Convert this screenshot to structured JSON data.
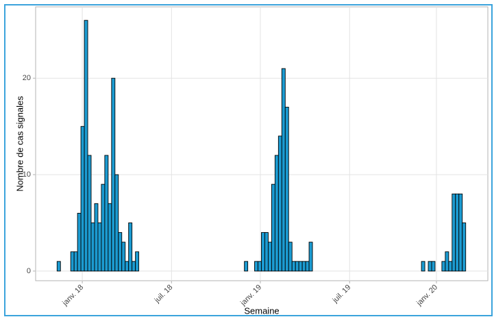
{
  "chart_data": {
    "type": "histogram",
    "y_label": "Nombre de cas signales",
    "x_label": "Semaine",
    "color": "#1c9bd1",
    "bins": [
      -4,
      -3,
      -2,
      -1,
      0,
      1,
      2,
      3,
      4,
      5,
      6,
      7,
      8,
      9,
      10,
      11,
      12,
      13,
      14,
      15,
      16,
      17,
      18,
      19,
      20,
      21,
      22,
      23,
      24,
      25,
      26,
      27,
      28,
      29,
      30,
      31,
      32,
      33,
      34,
      35,
      36,
      37,
      38,
      39,
      40,
      41,
      42,
      43,
      44,
      45,
      46,
      47,
      48,
      49,
      50,
      51,
      52,
      53,
      54,
      55,
      56,
      57,
      58,
      59,
      60,
      61,
      62,
      63,
      64,
      65,
      66,
      67,
      68,
      69,
      70,
      71,
      72,
      73,
      74,
      75,
      76,
      77,
      78,
      79,
      80,
      81,
      82,
      83,
      84,
      85,
      86,
      87,
      88,
      89,
      90,
      91,
      92,
      93,
      94,
      95,
      96,
      97,
      98,
      99,
      100,
      101,
      102,
      103,
      104,
      105,
      106,
      107,
      108,
      109,
      110,
      111,
      112,
      113,
      114,
      115,
      116
    ],
    "values": [
      1,
      0,
      0,
      0,
      2,
      2,
      6,
      15,
      26,
      12,
      5,
      7,
      5,
      9,
      12,
      7,
      20,
      10,
      4,
      3,
      1,
      5,
      1,
      2,
      0,
      0,
      0,
      0,
      0,
      0,
      0,
      0,
      0,
      0,
      0,
      0,
      0,
      0,
      0,
      0,
      0,
      0,
      0,
      0,
      0,
      0,
      0,
      0,
      0,
      0,
      0,
      0,
      0,
      0,
      0,
      1,
      0,
      0,
      1,
      1,
      4,
      4,
      3,
      9,
      12,
      14,
      21,
      17,
      3,
      1,
      1,
      1,
      1,
      1,
      3,
      0,
      0,
      0,
      0,
      0,
      0,
      0,
      0,
      0,
      0,
      0,
      0,
      0,
      0,
      0,
      0,
      0,
      0,
      0,
      0,
      0,
      0,
      0,
      0,
      0,
      0,
      0,
      0,
      0,
      0,
      0,
      0,
      1,
      0,
      1,
      1,
      0,
      0,
      1,
      2,
      1,
      8,
      8,
      8,
      5
    ],
    "xlim": [
      -10.3,
      122.5
    ],
    "xticks": [
      {
        "value": 3.4,
        "label": "janv. 18"
      },
      {
        "value": 29.6,
        "label": "juil. 18"
      },
      {
        "value": 55.7,
        "label": "janv. 19"
      },
      {
        "value": 81.9,
        "label": "juil. 19"
      },
      {
        "value": 107.4,
        "label": "janv. 20"
      }
    ],
    "ylim": [
      -1.0,
      27.4
    ],
    "yticks": [
      0,
      10,
      20
    ],
    "grid": true
  }
}
